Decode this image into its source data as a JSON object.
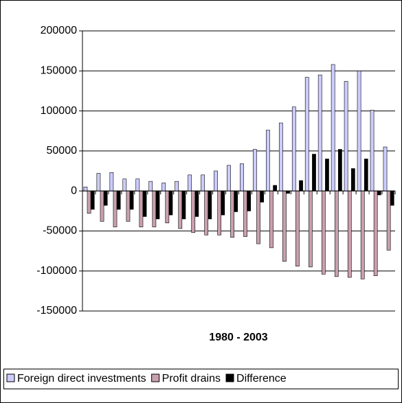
{
  "chart_data": {
    "type": "bar",
    "xlabel": "1980 - 2003",
    "categories": [
      null,
      null,
      null,
      null,
      null,
      null,
      null,
      null,
      null,
      null,
      null,
      null,
      null,
      null,
      null,
      null,
      null,
      null,
      null,
      null,
      null,
      null,
      null,
      null
    ],
    "series": [
      {
        "name": "Foreign direct investments",
        "color": "#ccccff",
        "values": [
          5000,
          22000,
          23000,
          15000,
          15000,
          12000,
          10000,
          12000,
          20000,
          20000,
          25000,
          32000,
          34000,
          52000,
          76000,
          85000,
          105000,
          142000,
          145000,
          158000,
          137000,
          150000,
          101000,
          55000
        ]
      },
      {
        "name": "Profit drains",
        "color": "#c9a0ae",
        "values": [
          -28000,
          -38000,
          -45000,
          -38000,
          -45000,
          -45000,
          -40000,
          -47000,
          -52000,
          -55000,
          -55000,
          -58000,
          -57000,
          -66000,
          -71000,
          -88000,
          -94000,
          -95000,
          -104000,
          -107000,
          -108000,
          -110000,
          -106000,
          -74000
        ]
      },
      {
        "name": "Difference",
        "color": "#000000",
        "values": [
          -23000,
          -18000,
          -23000,
          -23000,
          -32000,
          -35000,
          -30000,
          -35000,
          -32000,
          -35000,
          -30000,
          -26000,
          -25000,
          -14000,
          7000,
          -3000,
          13000,
          46000,
          40000,
          52000,
          28000,
          40000,
          -5000,
          -18000
        ]
      }
    ],
    "ylim": [
      -150000,
      200000
    ],
    "yticks": [
      -150000,
      -100000,
      -50000,
      0,
      50000,
      100000,
      150000,
      200000
    ],
    "grid": true,
    "legend": "bottom"
  }
}
